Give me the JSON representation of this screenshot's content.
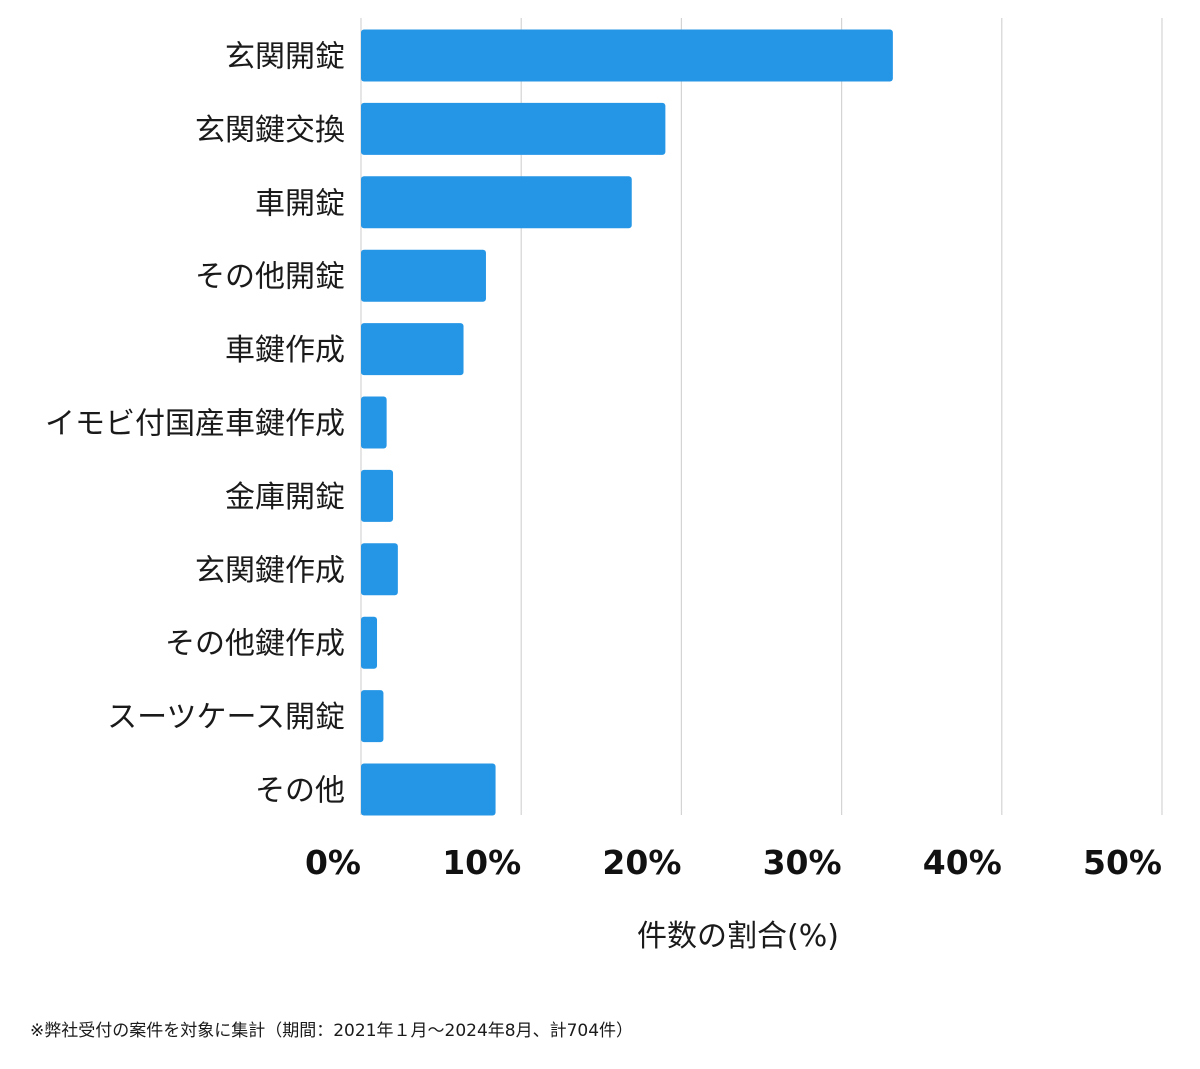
{
  "chart_data": {
    "type": "bar",
    "orientation": "horizontal",
    "categories": [
      "玄関開錠",
      "玄関鍵交換",
      "車開錠",
      "その他開錠",
      "車鍵作成",
      "イモビ付国産車鍵作成",
      "金庫開錠",
      "玄関鍵作成",
      "その他鍵作成",
      "スーツケース開錠",
      "その他"
    ],
    "values": [
      33.2,
      19.0,
      16.9,
      7.8,
      6.4,
      1.6,
      2.0,
      2.3,
      1.0,
      1.4,
      8.4
    ],
    "xlim": [
      0,
      50
    ],
    "xticks": [
      0,
      10,
      20,
      30,
      40,
      50
    ],
    "xtick_labels": [
      "0%",
      "10%",
      "20%",
      "30%",
      "40%",
      "50%"
    ],
    "xlabel": "件数の割合(%)",
    "title": "",
    "grid": "vertical",
    "bar_color": "#2596e6"
  },
  "footnote": "※弊社受付の案件を対象に集計（期間：2021年１月〜2024年8月、計704件）"
}
